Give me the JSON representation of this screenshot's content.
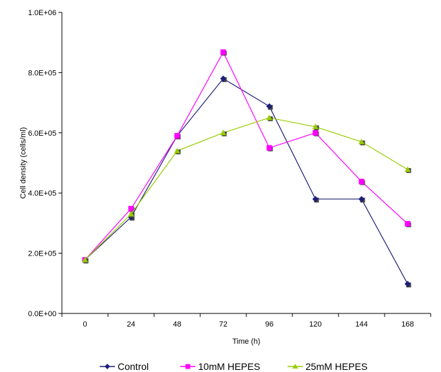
{
  "chart_data": {
    "type": "line",
    "title": "",
    "xlabel": "Time (h)",
    "ylabel": "Cell density (cells/ml)",
    "categories": [
      "0",
      "24",
      "48",
      "72",
      "96",
      "120",
      "144",
      "168"
    ],
    "ylim": [
      0,
      1000000
    ],
    "yticks": [
      "0.0E+00",
      "2.0E+05",
      "4.0E+05",
      "6.0E+05",
      "8.0E+05",
      "1.0E+06"
    ],
    "grid": false,
    "legend_position": "bottom",
    "series": [
      {
        "name": "Control",
        "color": "#1f1f7a",
        "marker": "diamond",
        "values": [
          178000,
          320000,
          590000,
          780000,
          688000,
          380000,
          380000,
          98000
        ]
      },
      {
        "name": "10mM HEPES",
        "color": "#ff00ff",
        "marker": "square",
        "values": [
          178000,
          348000,
          590000,
          868000,
          550000,
          600000,
          438000,
          298000
        ]
      },
      {
        "name": "25mM HEPES",
        "color": "#99cc00",
        "marker": "triangle",
        "values": [
          178000,
          330000,
          540000,
          600000,
          650000,
          620000,
          570000,
          478000
        ]
      }
    ]
  }
}
